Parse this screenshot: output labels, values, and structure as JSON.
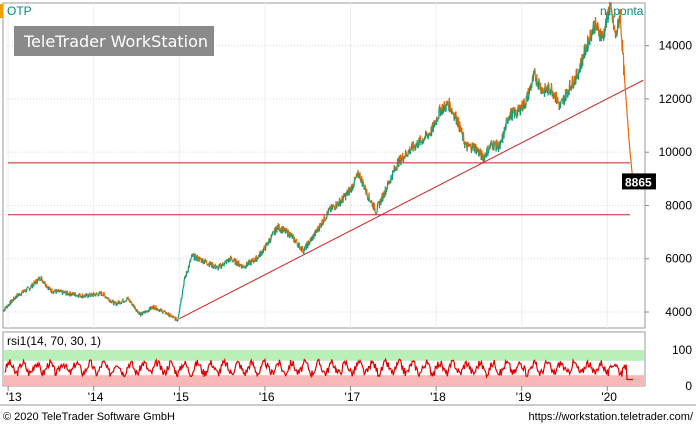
{
  "chart_data": [
    {
      "type": "line",
      "title": "OTP",
      "subtitle": "naponta",
      "watermark": "TeleTrader WorkStation",
      "x": [
        "'13",
        "'14",
        "'15",
        "'16",
        "'17",
        "'18",
        "'19",
        "'20"
      ],
      "x_range": [
        2012.94,
        2020.44
      ],
      "ylim": [
        3400,
        15600
      ],
      "yticks": [
        "4000",
        "6000",
        "8000",
        "10000",
        "12000",
        "14000"
      ],
      "last_value": "8865",
      "series": [
        {
          "color_up": "#00a07a",
          "color_down": "#ee6600",
          "points": [
            [
              2012.94,
              4050
            ],
            [
              2013.1,
              4600
            ],
            [
              2013.25,
              4900
            ],
            [
              2013.38,
              5300
            ],
            [
              2013.5,
              4800
            ],
            [
              2013.7,
              4700
            ],
            [
              2013.9,
              4600
            ],
            [
              2014.1,
              4700
            ],
            [
              2014.25,
              4300
            ],
            [
              2014.4,
              4500
            ],
            [
              2014.55,
              3900
            ],
            [
              2014.7,
              4200
            ],
            [
              2014.85,
              3950
            ],
            [
              2014.98,
              3700
            ],
            [
              2015.06,
              5200
            ],
            [
              2015.15,
              6100
            ],
            [
              2015.3,
              5900
            ],
            [
              2015.45,
              5650
            ],
            [
              2015.6,
              6000
            ],
            [
              2015.75,
              5700
            ],
            [
              2015.9,
              6000
            ],
            [
              2016.0,
              6400
            ],
            [
              2016.15,
              7200
            ],
            [
              2016.3,
              6900
            ],
            [
              2016.45,
              6300
            ],
            [
              2016.6,
              7000
            ],
            [
              2016.75,
              7800
            ],
            [
              2016.9,
              8200
            ],
            [
              2017.0,
              8600
            ],
            [
              2017.1,
              9200
            ],
            [
              2017.2,
              8400
            ],
            [
              2017.3,
              7800
            ],
            [
              2017.4,
              8500
            ],
            [
              2017.55,
              9600
            ],
            [
              2017.7,
              10100
            ],
            [
              2017.85,
              10500
            ],
            [
              2017.95,
              10800
            ],
            [
              2018.05,
              11600
            ],
            [
              2018.15,
              11800
            ],
            [
              2018.25,
              11200
            ],
            [
              2018.35,
              10200
            ],
            [
              2018.45,
              10200
            ],
            [
              2018.55,
              9800
            ],
            [
              2018.65,
              10300
            ],
            [
              2018.75,
              10200
            ],
            [
              2018.85,
              11400
            ],
            [
              2018.95,
              11500
            ],
            [
              2019.05,
              11900
            ],
            [
              2019.15,
              12900
            ],
            [
              2019.25,
              12300
            ],
            [
              2019.35,
              12400
            ],
            [
              2019.45,
              11700
            ],
            [
              2019.55,
              12400
            ],
            [
              2019.65,
              12900
            ],
            [
              2019.75,
              13900
            ],
            [
              2019.85,
              14800
            ],
            [
              2019.95,
              14300
            ],
            [
              2020.03,
              15500
            ],
            [
              2020.1,
              14300
            ],
            [
              2020.15,
              15200
            ],
            [
              2020.2,
              12800
            ],
            [
              2020.26,
              10200
            ],
            [
              2020.3,
              8865
            ]
          ]
        }
      ],
      "horizontal_lines": [
        9600,
        7650
      ],
      "trendline": [
        [
          2015.0,
          3750
        ],
        [
          2020.42,
          12700
        ]
      ]
    },
    {
      "type": "line",
      "title": "rsi1(14, 70, 30, 1)",
      "ylim": [
        0,
        100
      ],
      "yticks": [
        "0",
        "100"
      ],
      "bands": [
        {
          "from": 70,
          "to": 100,
          "color": "#b8f0b8"
        },
        {
          "from": 0,
          "to": 30,
          "color": "#f8b8b8"
        }
      ],
      "series": [
        {
          "name": "rsi1",
          "color": "#dd0000"
        }
      ]
    }
  ],
  "footer": {
    "copyright": "© 2020 TeleTrader Software GmbH",
    "url": "https://workstation.teletrader.com/"
  }
}
